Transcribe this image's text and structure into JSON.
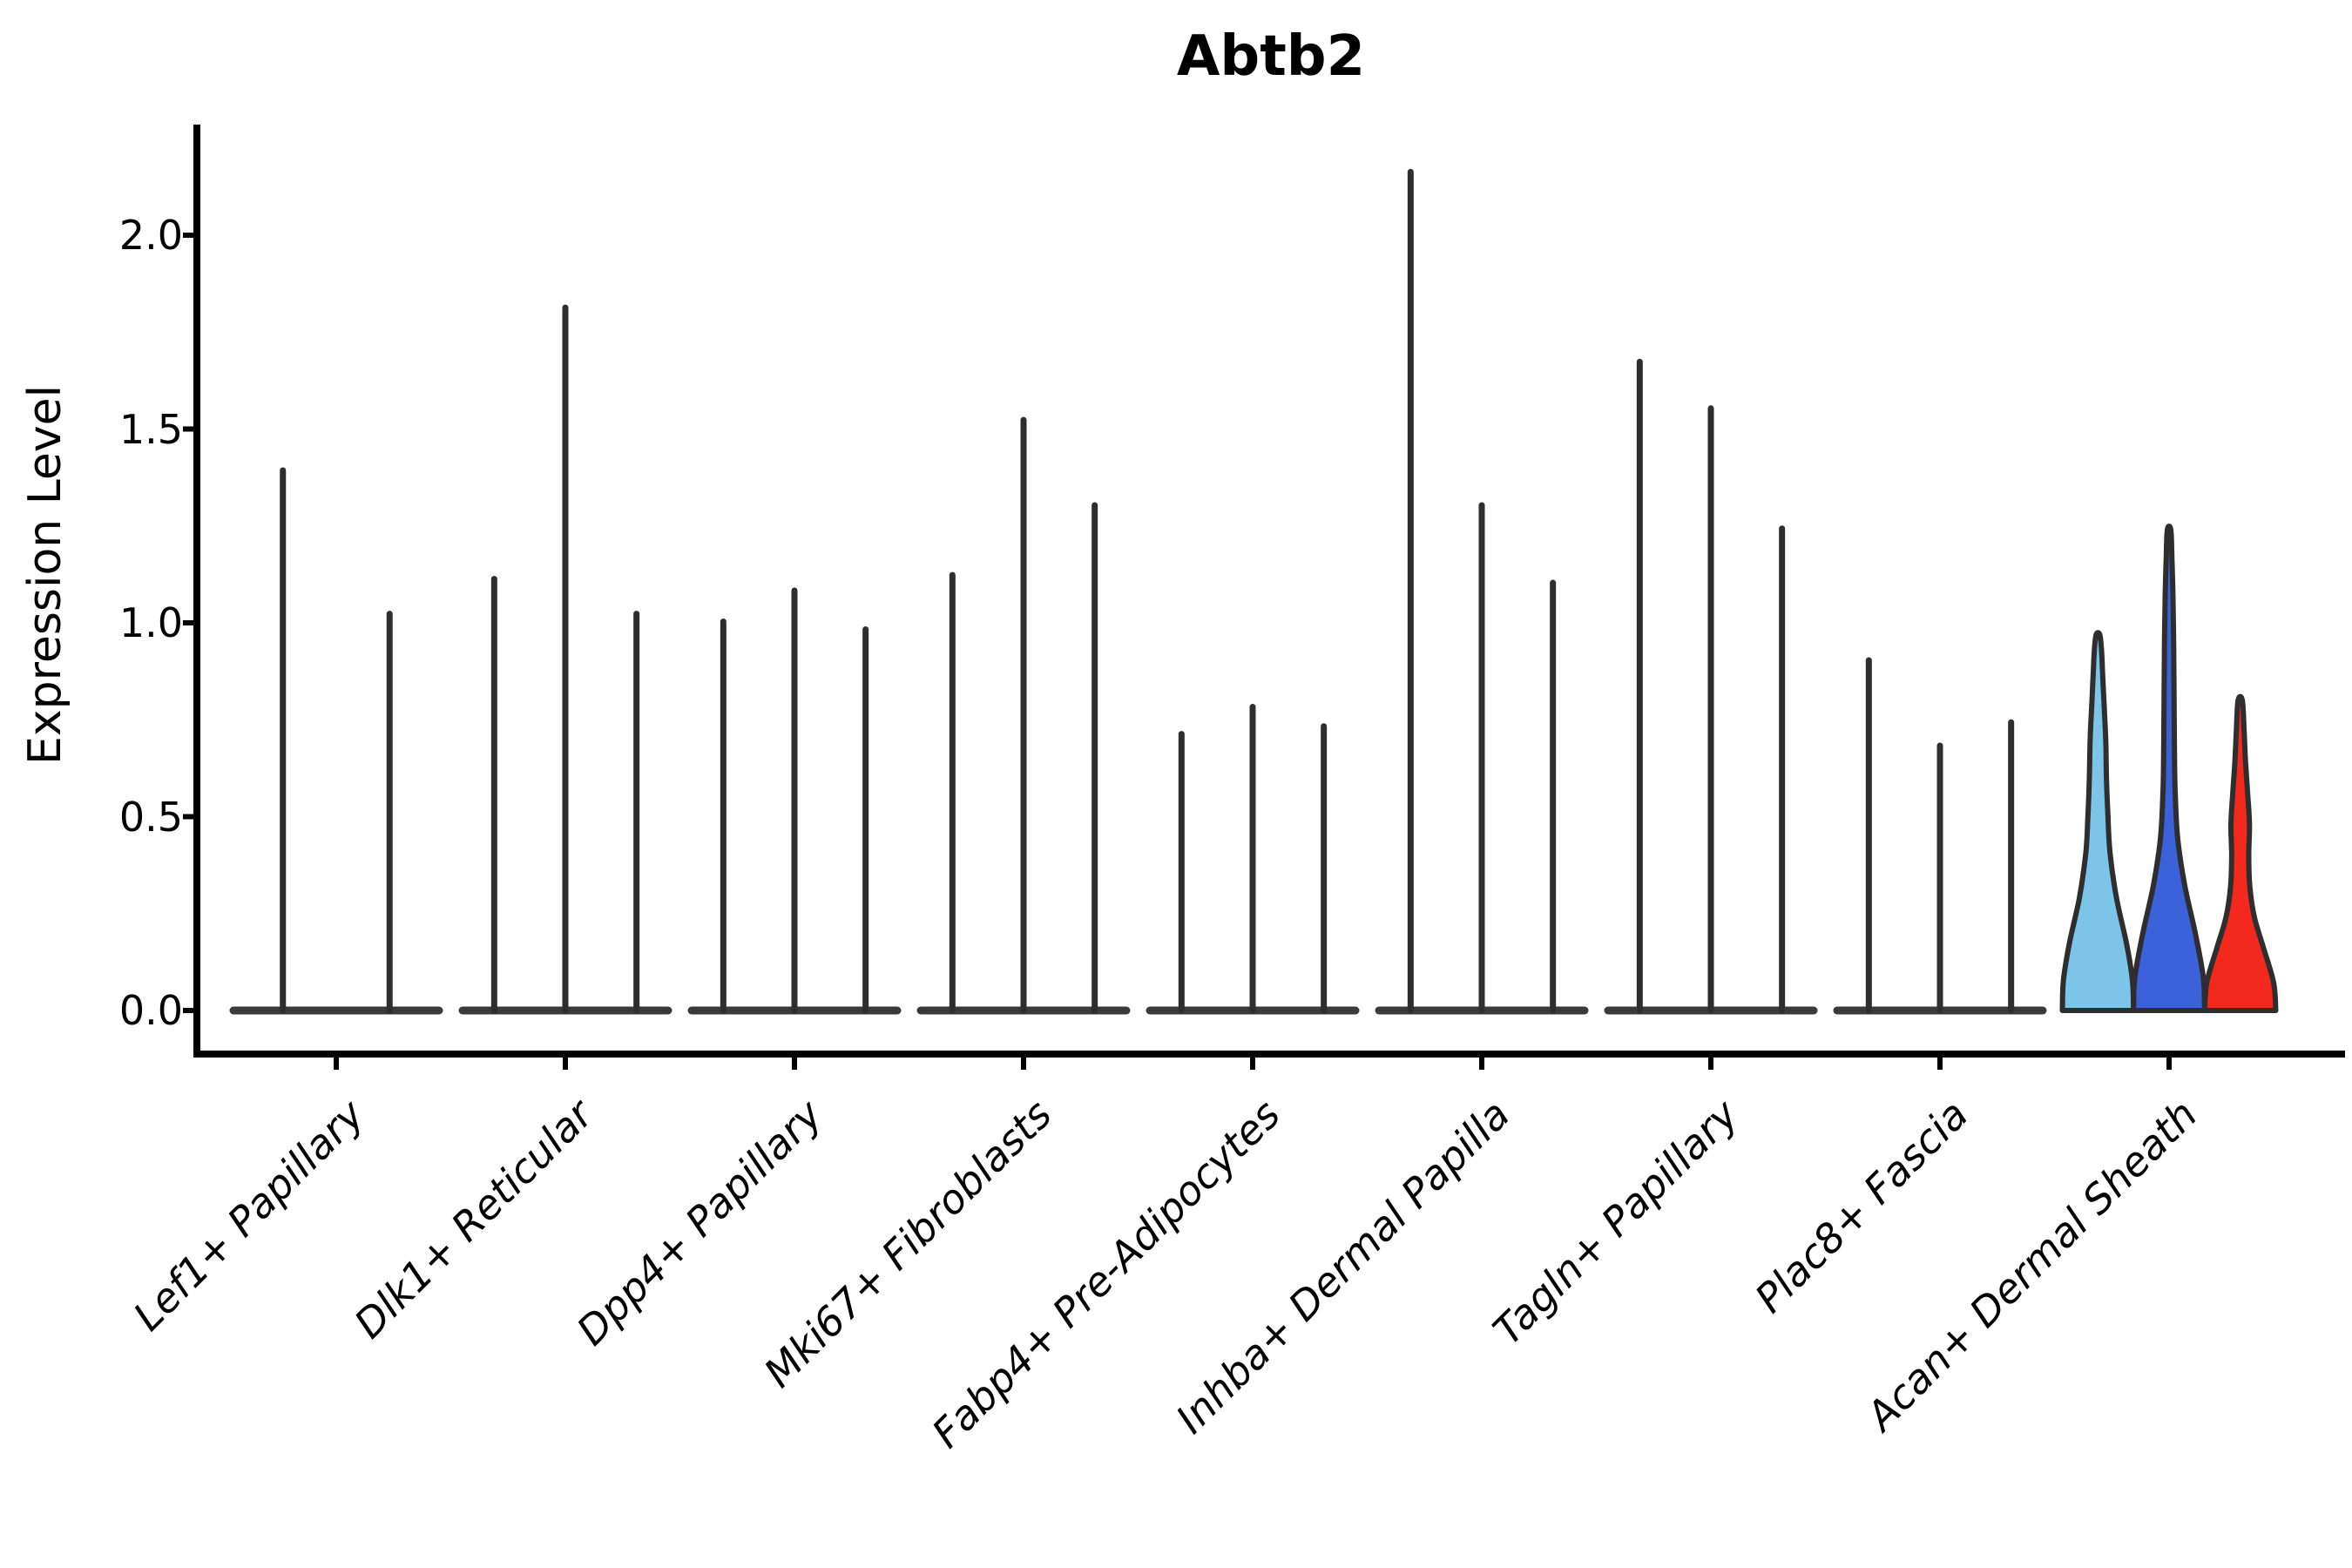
{
  "title": "Abtb2",
  "axes": {
    "ylabel": "Expression Level",
    "ytick_labels": [
      "0.0",
      "0.5",
      "1.0",
      "1.5",
      "2.0"
    ]
  },
  "chart_data": {
    "type": "violin",
    "title": "Abtb2",
    "xlabel": "",
    "ylabel": "Expression Level",
    "ylim": [
      -0.11,
      2.28
    ],
    "yticks": [
      0.0,
      0.5,
      1.0,
      1.5,
      2.0
    ],
    "grid": false,
    "legend": "none",
    "categories": [
      "Lef1+ Papillary",
      "Dlk1+ Reticular",
      "Dpp4+ Papillary",
      "Mki67+ Fibroblasts",
      "Fabp4+ Pre-Adipocytes",
      "Inhba+ Dermal Papilla",
      "Tagln+ Papillary",
      "Plac8+ Fascia",
      "Acan+ Dermal Sheath"
    ],
    "description": "Violin plot of Abtb2 expression per fibroblast subtype; each category holds narrow spike-like violins (density concentrated at 0) whose tops mark the maximum expression value; the Acan+ Dermal Sheath violins are color-filled.",
    "groups": [
      {
        "category": "Lef1+ Papillary",
        "violins": [
          {
            "max": 1.4
          },
          {
            "max": 1.03
          }
        ]
      },
      {
        "category": "Dlk1+ Reticular",
        "violins": [
          {
            "max": 1.12
          },
          {
            "max": 1.82
          },
          {
            "max": 1.03
          }
        ]
      },
      {
        "category": "Dpp4+ Papillary",
        "violins": [
          {
            "max": 1.01
          },
          {
            "max": 1.09
          },
          {
            "max": 0.99
          }
        ]
      },
      {
        "category": "Mki67+ Fibroblasts",
        "violins": [
          {
            "max": 1.13
          },
          {
            "max": 1.53
          },
          {
            "max": 1.31
          }
        ]
      },
      {
        "category": "Fabp4+ Pre-Adipocytes",
        "violins": [
          {
            "max": 0.72
          },
          {
            "max": 0.79
          },
          {
            "max": 0.74
          }
        ]
      },
      {
        "category": "Inhba+ Dermal Papilla",
        "violins": [
          {
            "max": 2.17
          },
          {
            "max": 1.31
          },
          {
            "max": 1.11
          }
        ]
      },
      {
        "category": "Tagln+ Papillary",
        "violins": [
          {
            "max": 1.68
          },
          {
            "max": 1.56
          },
          {
            "max": 1.25
          }
        ]
      },
      {
        "category": "Plac8+ Fascia",
        "violins": [
          {
            "max": 0.91
          },
          {
            "max": 0.69
          },
          {
            "max": 0.75
          }
        ]
      },
      {
        "category": "Acan+ Dermal Sheath",
        "violins": [
          {
            "max": 0.97,
            "fill": "#7CC4E8",
            "profile": [
              [
                0,
                1
              ],
              [
                0.08,
                0.97
              ],
              [
                0.18,
                0.8
              ],
              [
                0.3,
                0.52
              ],
              [
                0.42,
                0.34
              ],
              [
                0.52,
                0.28
              ],
              [
                0.62,
                0.24
              ],
              [
                0.72,
                0.22
              ],
              [
                0.82,
                0.17
              ],
              [
                0.9,
                0.13
              ],
              [
                0.96,
                0.1
              ],
              [
                1,
                0.05
              ]
            ]
          },
          {
            "max": 1.24,
            "fill": "#3B62DB",
            "profile": [
              [
                0,
                1
              ],
              [
                0.07,
                0.96
              ],
              [
                0.16,
                0.74
              ],
              [
                0.26,
                0.44
              ],
              [
                0.36,
                0.24
              ],
              [
                0.46,
                0.17
              ],
              [
                0.56,
                0.15
              ],
              [
                0.66,
                0.14
              ],
              [
                0.76,
                0.13
              ],
              [
                0.86,
                0.11
              ],
              [
                0.94,
                0.08
              ],
              [
                1,
                0.05
              ]
            ]
          },
          {
            "max": 0.8,
            "fill": "#F4291D",
            "profile": [
              [
                0,
                1
              ],
              [
                0.09,
                0.94
              ],
              [
                0.2,
                0.66
              ],
              [
                0.3,
                0.4
              ],
              [
                0.4,
                0.27
              ],
              [
                0.5,
                0.24
              ],
              [
                0.6,
                0.26
              ],
              [
                0.7,
                0.21
              ],
              [
                0.8,
                0.15
              ],
              [
                0.9,
                0.11
              ],
              [
                1,
                0.06
              ]
            ]
          }
        ]
      }
    ],
    "colors": {
      "violin_line": "#2E2E2E",
      "baseline": "#3A3A3A",
      "spine": "#000000",
      "highlight_fills": [
        "#7CC4E8",
        "#3B62DB",
        "#F4291D"
      ]
    }
  }
}
